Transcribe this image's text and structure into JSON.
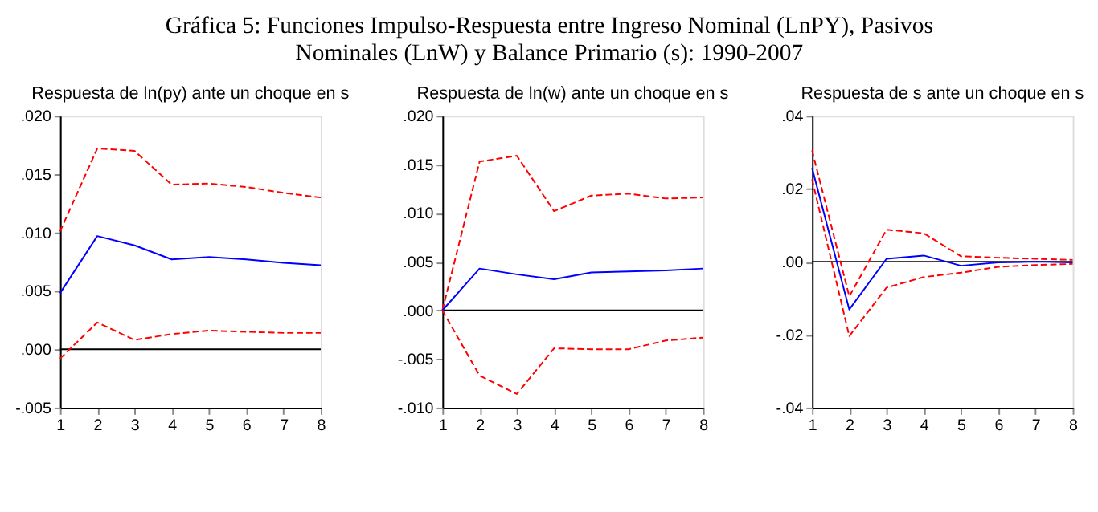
{
  "chart_data": [
    {
      "type": "line",
      "title": "Gráfica 5: Funciones Impulso-Respuesta entre Ingreso Nominal (LnPY), Pasivos\nNominales (LnW) y Balance Primario (s): 1990-2007",
      "subtitle": "Respuesta de ln(py) ante un choque en s",
      "x": [
        1,
        2,
        3,
        4,
        5,
        6,
        7,
        8
      ],
      "xlim": [
        1,
        8
      ],
      "xticks": [
        1,
        2,
        3,
        4,
        5,
        6,
        7,
        8
      ],
      "ylim": [
        -0.005,
        0.02
      ],
      "yticks": [
        {
          "value": -0.005,
          "label": "-.005"
        },
        {
          "value": 0,
          "label": ".000"
        },
        {
          "value": 0.005,
          "label": ".005"
        },
        {
          "value": 0.01,
          "label": ".010"
        },
        {
          "value": 0.015,
          "label": ".015"
        },
        {
          "value": 0.02,
          "label": ".020"
        }
      ],
      "grid": false,
      "ref_lines": [
        {
          "axis": "y",
          "value": 0,
          "color": "#000000"
        }
      ],
      "series": [
        {
          "color": "#ff0000",
          "line_style": "dashed",
          "values": [
            0.0101,
            0.0172,
            0.017,
            0.0141,
            0.0142,
            0.0139,
            0.0134,
            0.013
          ]
        },
        {
          "color": "#0000ff",
          "line_style": "solid",
          "values": [
            0.0048,
            0.0097,
            0.0089,
            0.0077,
            0.0079,
            0.0077,
            0.0074,
            0.0072
          ]
        },
        {
          "color": "#ff0000",
          "line_style": "dashed",
          "values": [
            -0.0008,
            0.0023,
            0.0008,
            0.0013,
            0.0016,
            0.0015,
            0.0014,
            0.0014
          ]
        }
      ]
    },
    {
      "type": "line",
      "subtitle": "Respuesta de ln(w) ante un choque en s",
      "x": [
        1,
        2,
        3,
        4,
        5,
        6,
        7,
        8
      ],
      "xlim": [
        1,
        8
      ],
      "xticks": [
        1,
        2,
        3,
        4,
        5,
        6,
        7,
        8
      ],
      "ylim": [
        -0.01,
        0.02
      ],
      "yticks": [
        {
          "value": -0.01,
          "label": "-.010"
        },
        {
          "value": -0.005,
          "label": "-.005"
        },
        {
          "value": 0,
          "label": ".000"
        },
        {
          "value": 0.005,
          "label": ".005"
        },
        {
          "value": 0.01,
          "label": ".010"
        },
        {
          "value": 0.015,
          "label": ".015"
        },
        {
          "value": 0.02,
          "label": ".020"
        }
      ],
      "grid": false,
      "ref_lines": [
        {
          "axis": "y",
          "value": 0,
          "color": "#000000"
        }
      ],
      "series": [
        {
          "color": "#ff0000",
          "line_style": "dashed",
          "values": [
            0,
            0.0153,
            0.0159,
            0.0102,
            0.0118,
            0.012,
            0.0115,
            0.0116
          ]
        },
        {
          "color": "#0000ff",
          "line_style": "solid",
          "values": [
            0,
            0.0043,
            0.0037,
            0.0032,
            0.0039,
            0.004,
            0.0041,
            0.0043
          ]
        },
        {
          "color": "#ff0000",
          "line_style": "dashed",
          "values": [
            0,
            -0.0067,
            -0.0086,
            -0.0039,
            -0.004,
            -0.004,
            -0.0031,
            -0.0028
          ]
        }
      ]
    },
    {
      "type": "line",
      "subtitle": "Respuesta de s ante un choque en s",
      "x": [
        1,
        2,
        3,
        4,
        5,
        6,
        7,
        8
      ],
      "xlim": [
        1,
        8
      ],
      "xticks": [
        1,
        2,
        3,
        4,
        5,
        6,
        7,
        8
      ],
      "ylim": [
        -0.04,
        0.04
      ],
      "yticks": [
        {
          "value": -0.04,
          "label": "-.04"
        },
        {
          "value": -0.02,
          "label": "-.02"
        },
        {
          "value": 0,
          "label": ".00"
        },
        {
          "value": 0.02,
          "label": ".02"
        },
        {
          "value": 0.04,
          "label": ".04"
        }
      ],
      "grid": false,
      "ref_lines": [
        {
          "axis": "y",
          "value": 0,
          "color": "#000000"
        }
      ],
      "series": [
        {
          "color": "#ff0000",
          "line_style": "dashed",
          "values": [
            0.0305,
            -0.0095,
            0.0088,
            0.0078,
            0.0015,
            0.0011,
            0.0008,
            0.0005
          ]
        },
        {
          "color": "#0000ff",
          "line_style": "solid",
          "values": [
            0.0257,
            -0.0131,
            0.0008,
            0.0017,
            -0.0011,
            -0.0002,
            0,
            -0.0002
          ]
        },
        {
          "color": "#ff0000",
          "line_style": "dashed",
          "values": [
            0.0226,
            -0.0204,
            -0.0071,
            -0.0042,
            -0.003,
            -0.0014,
            -0.0009,
            -0.0006
          ]
        }
      ]
    }
  ]
}
